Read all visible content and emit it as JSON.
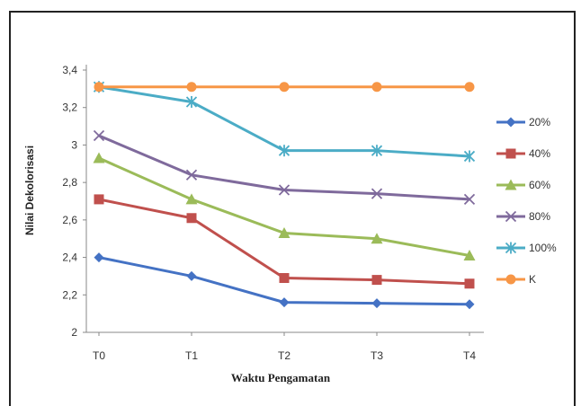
{
  "chart_data": {
    "type": "line",
    "categories": [
      "T0",
      "T1",
      "T2",
      "T3",
      "T4"
    ],
    "xlabel": "Waktu Pengamatan",
    "ylabel": "Nilai Dekolorisasi",
    "ylim": [
      2,
      3.4
    ],
    "yticks": [
      "2",
      "2,2",
      "2,4",
      "2,6",
      "2,8",
      "3",
      "3,2",
      "3,4"
    ],
    "legend_position": "right",
    "grid": false,
    "series": [
      {
        "name": "20%",
        "color": "#4472C4",
        "marker": "diamond",
        "values": [
          2.4,
          2.3,
          2.16,
          2.155,
          2.15
        ]
      },
      {
        "name": "40%",
        "color": "#C0504D",
        "marker": "square",
        "values": [
          2.71,
          2.61,
          2.29,
          2.28,
          2.26
        ]
      },
      {
        "name": "60%",
        "color": "#9BBB59",
        "marker": "triangle",
        "values": [
          2.93,
          2.71,
          2.53,
          2.5,
          2.41
        ]
      },
      {
        "name": "80%",
        "color": "#7F6A9C",
        "marker": "x",
        "values": [
          3.05,
          2.84,
          2.76,
          2.74,
          2.71
        ]
      },
      {
        "name": "100%",
        "color": "#4BACC6",
        "marker": "star",
        "values": [
          3.31,
          3.23,
          2.97,
          2.97,
          2.94
        ]
      },
      {
        "name": "K",
        "color": "#F79646",
        "marker": "circle",
        "values": [
          3.31,
          3.31,
          3.31,
          3.31,
          3.31
        ]
      }
    ]
  }
}
